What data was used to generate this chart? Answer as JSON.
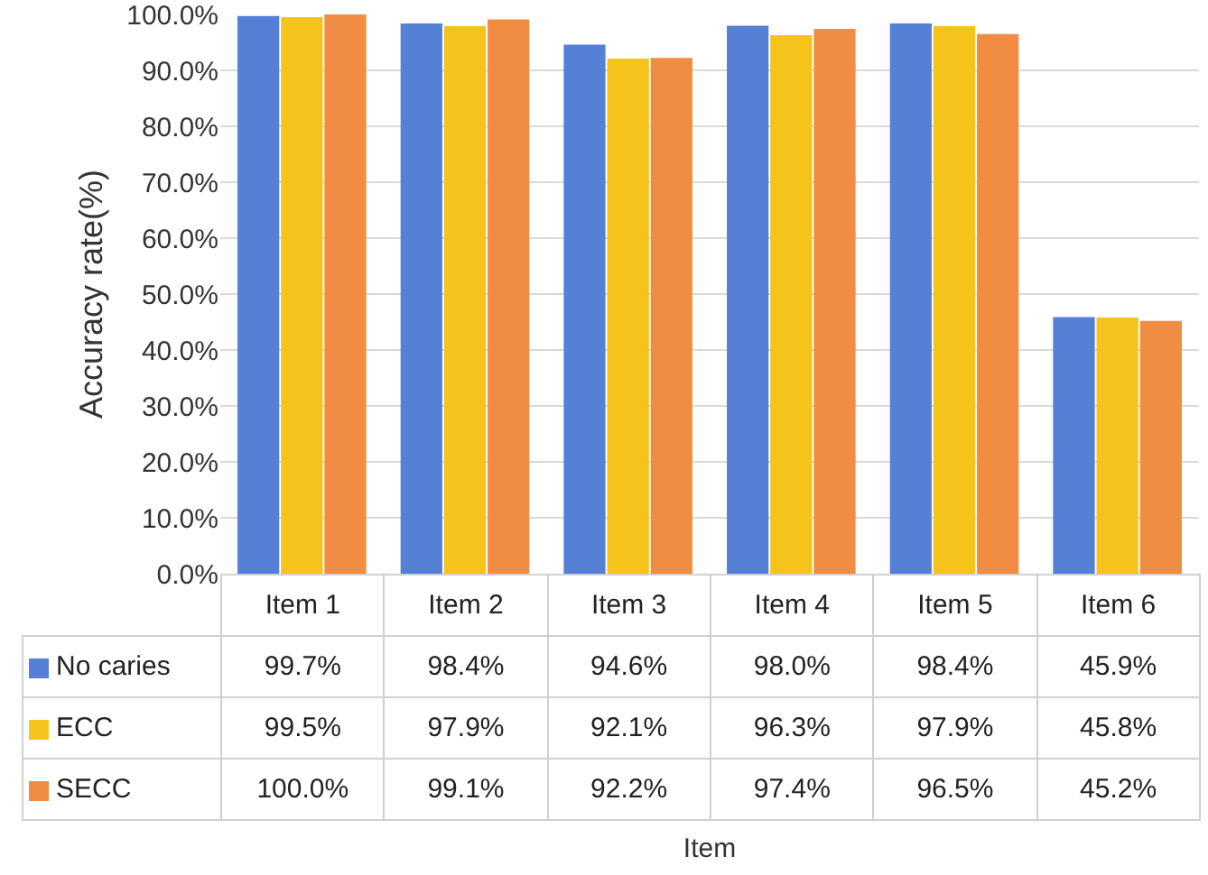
{
  "chart_data": {
    "type": "bar",
    "annotations": [
      "Item"
    ],
    "legend": "bottom left",
    "ylabel": "Accuracy rate(%)",
    "categories": [
      "Item 1",
      "Item 2",
      "Item 3",
      "Item 4",
      "Item 5",
      "Item 6"
    ],
    "series": [
      {
        "name": "No caries",
        "color": "#5580d6",
        "values": [
          99.7,
          98.4,
          94.6,
          98.0,
          98.4,
          45.9
        ],
        "value_labels": [
          "99.7%",
          "98.4%",
          "94.6%",
          "98.0%",
          "98.4%",
          "45.9%"
        ]
      },
      {
        "name": "ECC",
        "color": "#f6c21c",
        "values": [
          99.5,
          97.9,
          92.1,
          96.3,
          97.9,
          45.8
        ],
        "value_labels": [
          "99.5%",
          "97.9%",
          "92.1%",
          "96.3%",
          "97.9%",
          "45.8%"
        ]
      },
      {
        "name": "SECC",
        "color": "#f08d42",
        "values": [
          100.0,
          99.1,
          92.2,
          97.4,
          96.5,
          45.2
        ],
        "value_labels": [
          "100.0%",
          "99.1%",
          "92.2%",
          "97.4%",
          "96.5%",
          "45.2%"
        ]
      }
    ],
    "ylim": [
      0,
      100
    ],
    "yticks": [
      {
        "value": 0,
        "label": "0.0%"
      },
      {
        "value": 10,
        "label": "10.0%"
      },
      {
        "value": 20,
        "label": "20.0%"
      },
      {
        "value": 30,
        "label": "30.0%"
      },
      {
        "value": 40,
        "label": "40.0%"
      },
      {
        "value": 50,
        "label": "50.0%"
      },
      {
        "value": 60,
        "label": "60.0%"
      },
      {
        "value": 70,
        "label": "70.0%"
      },
      {
        "value": 80,
        "label": "80.0%"
      },
      {
        "value": 90,
        "label": "90.0%"
      },
      {
        "value": 100,
        "label": "100.0%"
      }
    ],
    "grid": "y",
    "tick_labels": "y"
  }
}
